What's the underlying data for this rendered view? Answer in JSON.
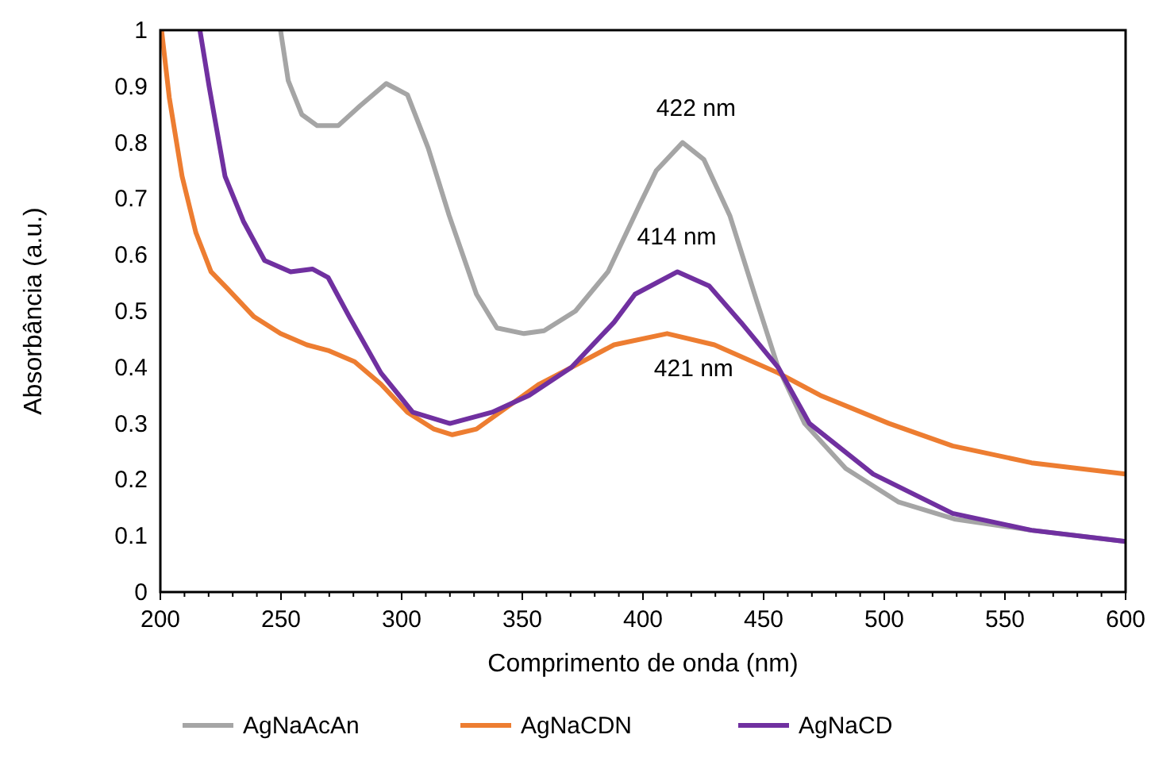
{
  "chart_data": {
    "type": "line",
    "xlabel": "Comprimento de onda (nm)",
    "ylabel": "Absorbância (a.u.)",
    "xlim": [
      200,
      600
    ],
    "ylim": [
      0,
      1
    ],
    "xticks": [
      200,
      {
        "value": 210,
        "label": null
      },
      {
        "value": 220,
        "label": null
      },
      {
        "value": 230,
        "label": null
      },
      {
        "value": 240,
        "label": null
      },
      250,
      {
        "value": 260,
        "label": null
      },
      {
        "value": 270,
        "label": null
      },
      {
        "value": 280,
        "label": null
      },
      {
        "value": 290,
        "label": null
      },
      300,
      {
        "value": 310,
        "label": null
      },
      {
        "value": 320,
        "label": null
      },
      {
        "value": 330,
        "label": null
      },
      {
        "value": 340,
        "label": null
      },
      350,
      {
        "value": 360,
        "label": null
      },
      {
        "value": 370,
        "label": null
      },
      {
        "value": 380,
        "label": null
      },
      {
        "value": 390,
        "label": null
      },
      400,
      {
        "value": 410,
        "label": null
      },
      {
        "value": 420,
        "label": null
      },
      {
        "value": 430,
        "label": null
      },
      {
        "value": 440,
        "label": null
      },
      450,
      {
        "value": 460,
        "label": null
      },
      {
        "value": 470,
        "label": null
      },
      {
        "value": 480,
        "label": null
      },
      {
        "value": 490,
        "label": null
      },
      500,
      {
        "value": 510,
        "label": null
      },
      {
        "value": 520,
        "label": null
      },
      {
        "value": 530,
        "label": null
      },
      {
        "value": 540,
        "label": null
      },
      550,
      {
        "value": 560,
        "label": null
      },
      {
        "value": 570,
        "label": null
      },
      {
        "value": 580,
        "label": null
      },
      {
        "value": 590,
        "label": null
      },
      600
    ],
    "yticks": [
      0,
      0.1,
      0.2,
      0.3,
      0.4,
      0.5,
      0.6,
      0.7,
      0.8,
      0.9,
      1
    ],
    "grid": false,
    "legend": "bottom",
    "marker": "none",
    "line_style": "solid",
    "series": [
      {
        "name": "AgNaAcAn",
        "color": "#a5a5a5",
        "x": [
          249.8,
          253,
          258.6,
          265,
          273.7,
          282.7,
          293.6,
          302.4,
          311,
          319.7,
          331,
          339.5,
          350.7,
          359,
          372,
          385.5,
          398.7,
          405.5,
          416.4,
          425.2,
          436,
          447,
          456,
          467,
          484,
          506,
          529,
          561,
          600
        ],
        "values": [
          1.0,
          0.91,
          0.85,
          0.83,
          0.83,
          0.865,
          0.905,
          0.885,
          0.79,
          0.67,
          0.53,
          0.47,
          0.46,
          0.465,
          0.5,
          0.57,
          0.69,
          0.75,
          0.8,
          0.77,
          0.67,
          0.52,
          0.4,
          0.3,
          0.22,
          0.16,
          0.13,
          0.11,
          0.09
        ]
      },
      {
        "name": "AgNaCDN",
        "color": "#ed7d31",
        "x": [
          200.5,
          203.7,
          209,
          214.7,
          221,
          227.8,
          238.8,
          249.8,
          260.7,
          269.5,
          280.5,
          291.4,
          302.4,
          313.4,
          321,
          331,
          344,
          357,
          370.4,
          388,
          410,
          429.6,
          456,
          473.5,
          502,
          528.3,
          561,
          600
        ],
        "values": [
          1.0,
          0.88,
          0.74,
          0.64,
          0.57,
          0.54,
          0.49,
          0.46,
          0.44,
          0.43,
          0.41,
          0.37,
          0.32,
          0.29,
          0.28,
          0.29,
          0.33,
          0.37,
          0.4,
          0.44,
          0.46,
          0.44,
          0.39,
          0.35,
          0.3,
          0.26,
          0.23,
          0.21
        ]
      },
      {
        "name": "AgNaCD",
        "color": "#7030a0",
        "x": [
          216.4,
          220.2,
          226.8,
          234.4,
          243.2,
          254,
          263,
          269.5,
          278.3,
          291.4,
          304.6,
          320,
          337.5,
          352.8,
          370.4,
          388,
          396.7,
          414.3,
          427.4,
          440.6,
          456,
          469,
          495.4,
          528.3,
          561,
          600
        ],
        "values": [
          1.0,
          0.9,
          0.74,
          0.66,
          0.59,
          0.57,
          0.575,
          0.56,
          0.49,
          0.39,
          0.32,
          0.3,
          0.32,
          0.35,
          0.4,
          0.48,
          0.53,
          0.57,
          0.545,
          0.48,
          0.4,
          0.3,
          0.21,
          0.14,
          0.11,
          0.09
        ]
      }
    ],
    "annotations": [
      {
        "text": "422 nm",
        "x": 422,
        "y": 0.8
      },
      {
        "text": "414 nm",
        "x": 414,
        "y": 0.57
      },
      {
        "text": "421 nm",
        "x": 421,
        "y": 0.46
      }
    ]
  }
}
